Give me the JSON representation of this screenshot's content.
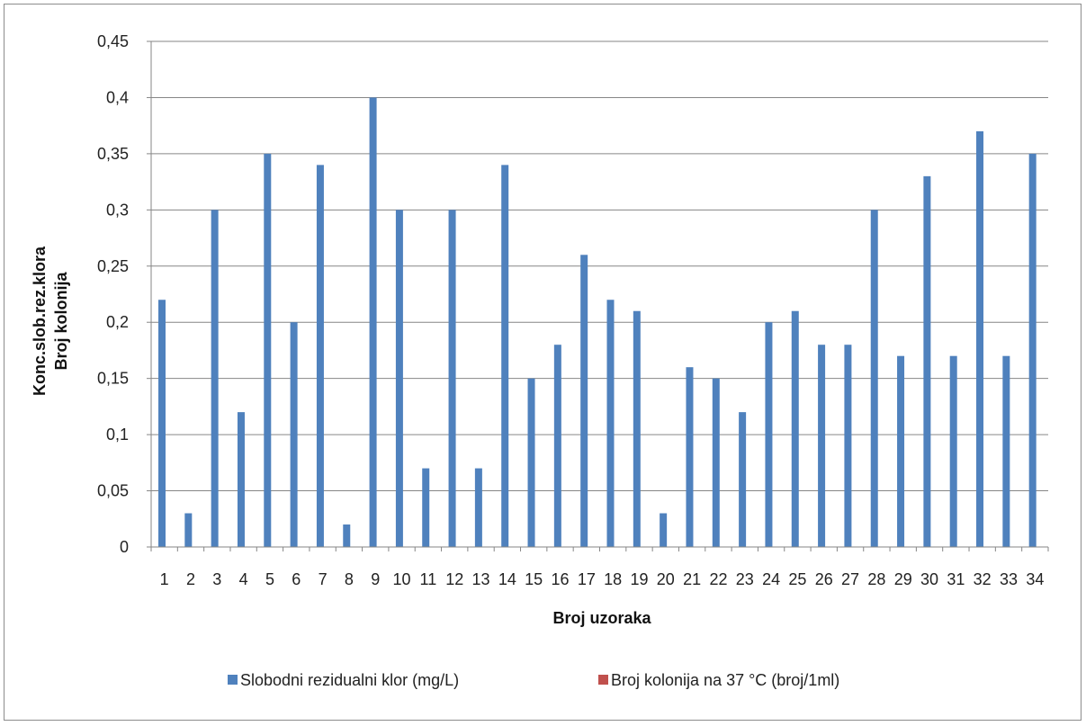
{
  "chart_data": {
    "type": "bar",
    "categories": [
      "1",
      "2",
      "3",
      "4",
      "5",
      "6",
      "7",
      "8",
      "9",
      "10",
      "11",
      "12",
      "13",
      "14",
      "15",
      "16",
      "17",
      "18",
      "19",
      "20",
      "21",
      "22",
      "23",
      "24",
      "25",
      "26",
      "27",
      "28",
      "29",
      "30",
      "31",
      "32",
      "33",
      "34"
    ],
    "series": [
      {
        "name": "Slobodni rezidualni klor (mg/L)",
        "color": "#4f81bd",
        "values": [
          0.22,
          0.03,
          0.3,
          0.12,
          0.35,
          0.2,
          0.34,
          0.02,
          0.4,
          0.3,
          0.07,
          0.3,
          0.07,
          0.34,
          0.15,
          0.18,
          0.26,
          0.22,
          0.21,
          0.03,
          0.16,
          0.15,
          0.12,
          0.2,
          0.21,
          0.18,
          0.18,
          0.3,
          0.17,
          0.33,
          0.17,
          0.37,
          0.17,
          0.35
        ]
      },
      {
        "name": "Broj kolonija na 37 °C (broj/1ml)",
        "color": "#c0504d",
        "values": [
          0,
          0,
          0,
          0,
          0,
          0,
          0,
          0,
          0,
          0,
          0,
          0,
          0,
          0,
          0,
          0,
          0,
          0,
          0,
          0,
          0,
          0,
          0,
          0,
          0,
          0,
          0,
          0,
          0,
          0,
          0,
          0,
          0,
          0
        ]
      }
    ],
    "xlabel": "Broj uzoraka",
    "ylabel_lines": [
      "Konc.slob.rez.klora",
      "Broj kolonija"
    ],
    "ylim": [
      0,
      0.45
    ],
    "yticks": [
      0,
      0.05,
      0.1,
      0.15,
      0.2,
      0.25,
      0.3,
      0.35,
      0.4,
      0.45
    ],
    "ytick_labels": [
      "0",
      "0,05",
      "0,1",
      "0,15",
      "0,2",
      "0,25",
      "0,3",
      "0,35",
      "0,4",
      "0,45"
    ],
    "grid": "horizontal",
    "legend_position": "bottom",
    "gridline_color": "#868686"
  }
}
